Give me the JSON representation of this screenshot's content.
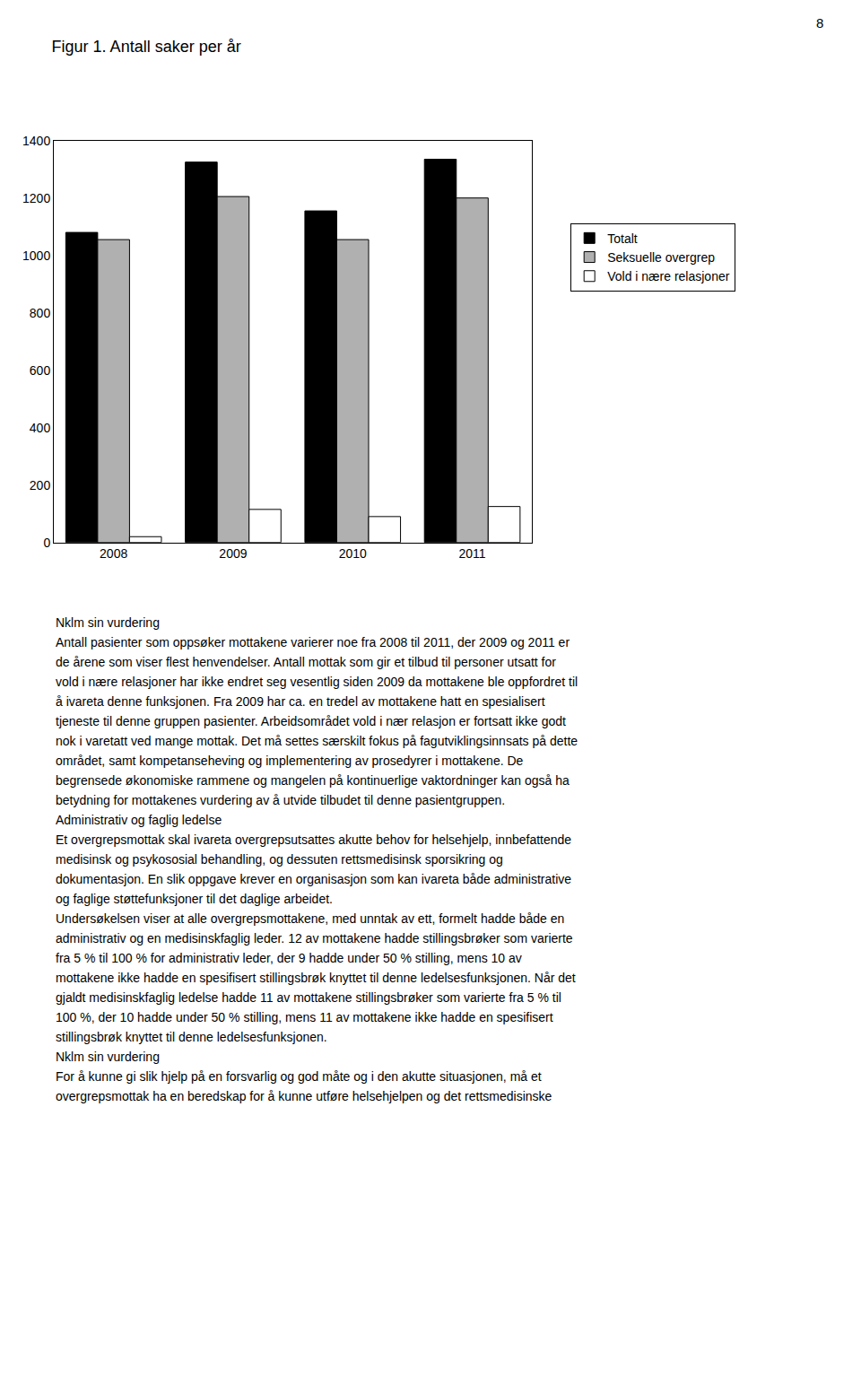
{
  "chart_data": {
    "type": "bar",
    "title": "Figur 1. Antall saker per år",
    "categories": [
      "2008",
      "2009",
      "2010",
      "2011"
    ],
    "series": [
      {
        "name": "Totalt",
        "color": "#000000",
        "values": [
          1080,
          1325,
          1155,
          1335
        ]
      },
      {
        "name": "Seksuelle overgrep",
        "color": "#b0b0b0",
        "values": [
          1055,
          1205,
          1055,
          1200
        ]
      },
      {
        "name": "Vold i nære relasjoner",
        "color": "#ffffff",
        "values": [
          20,
          115,
          90,
          125
        ]
      }
    ],
    "ylim": [
      0,
      1400
    ],
    "yticks": [
      0,
      200,
      400,
      600,
      800,
      1000,
      1200,
      1400
    ],
    "grid": false,
    "legend": "right",
    "annotations": [
      "8",
      "Nklm sin vurdering",
      "Antall pasienter som oppsøker mottakene varierer noe fra 2008 til 2011, der 2009 og 2011 er",
      "de årene som viser flest henvendelser. Antall mottak som gir et tilbud til personer utsatt for",
      "vold i nære relasjoner har ikke endret seg vesentlig siden 2009 da mottakene ble oppfordret til",
      "å ivareta denne funksjonen. Fra 2009 har ca. en tredel av mottakene hatt en spesialisert",
      "tjeneste til denne gruppen pasienter. Arbeidsområdet vold i nær relasjon er fortsatt ikke godt",
      "nok i varetatt ved mange mottak. Det må settes særskilt fokus på fagutviklingsinnsats på dette",
      "området, samt kompetanseheving og implementering av prosedyrer i mottakene. De",
      "begrensede økonomiske rammene og mangelen på kontinuerlige vaktordninger kan også ha",
      "betydning for mottakenes vurdering av å utvide tilbudet til denne pasientgruppen.",
      "Administrativ og faglig ledelse",
      "Et overgrepsmottak skal ivareta overgrepsutsattes akutte behov for helsehjelp, innbefattende",
      "medisinsk og psykososial behandling, og dessuten rettsmedisinsk sporsikring og",
      "dokumentasjon. En slik oppgave krever en organisasjon som kan ivareta både administrative",
      "og faglige støttefunksjoner til det daglige arbeidet.",
      "Undersøkelsen viser at alle overgrepsmottakene, med unntak av ett, formelt hadde både en",
      "administrativ og en medisinskfaglig leder. 12 av mottakene hadde stillingsbrøker som varierte",
      "fra 5 % til 100 % for administrativ leder, der 9 hadde under 50 % stilling, mens 10 av",
      "mottakene ikke hadde en spesifisert stillingsbrøk knyttet til denne ledelsesfunksjonen. Når det",
      "gjaldt medisinskfaglig ledelse hadde 11 av mottakene stillingsbrøker som varierte fra 5 % til",
      "100 %, der 10 hadde under 50 % stilling, mens 11 av mottakene ikke hadde en spesifisert",
      "stillingsbrøk knyttet til denne ledelsesfunksjonen.",
      "Nklm sin vurdering",
      "For å kunne gi slik hjelp på en forsvarlig og god måte og i den akutte situasjonen, må et",
      "overgrepsmottak ha en beredskap for å kunne utføre helsehjelpen og det rettsmedisinske"
    ]
  }
}
